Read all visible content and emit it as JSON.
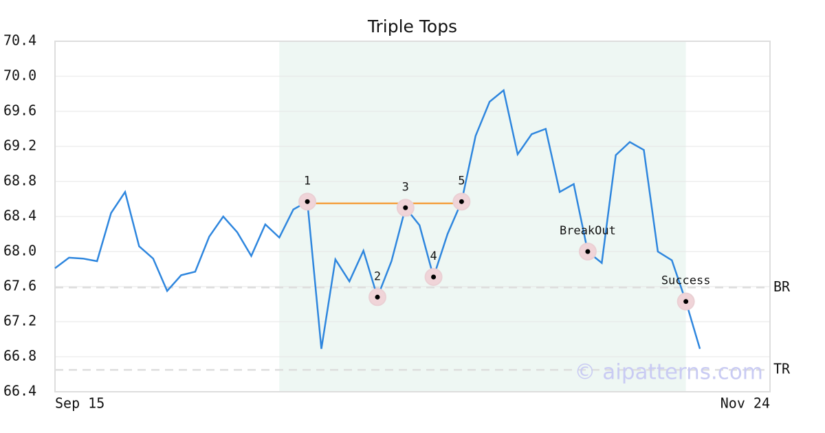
{
  "chart_data": {
    "type": "line",
    "title": "Triple Tops",
    "x": [
      0,
      1,
      2,
      3,
      4,
      5,
      6,
      7,
      8,
      9,
      10,
      11,
      12,
      13,
      14,
      15,
      16,
      17,
      18,
      19,
      20,
      21,
      22,
      23,
      24,
      25,
      26,
      27,
      28,
      29,
      30,
      31,
      32,
      33,
      34,
      35,
      36,
      37,
      38,
      39,
      40,
      41,
      42,
      43,
      44,
      45,
      46
    ],
    "series": [
      {
        "color": "#2e86de",
        "values": [
          67.81,
          67.93,
          67.92,
          67.89,
          68.44,
          68.68,
          68.06,
          67.92,
          67.55,
          67.73,
          67.77,
          68.17,
          68.4,
          68.22,
          67.95,
          68.31,
          68.16,
          68.48,
          68.57,
          66.89,
          67.91,
          67.66,
          68.01,
          67.48,
          67.89,
          68.5,
          68.3,
          67.71,
          68.2,
          68.57,
          69.32,
          69.71,
          69.84,
          69.11,
          69.34,
          69.4,
          68.68,
          68.77,
          68.0,
          67.87,
          69.1,
          69.25,
          69.16,
          68.0,
          67.9,
          67.43,
          66.89
        ]
      }
    ],
    "xlim": [
      0,
      51
    ],
    "xticks": [
      {
        "value": 0,
        "label": "Sep 15"
      },
      {
        "value": 51,
        "label": "Nov 24"
      }
    ],
    "ylim": [
      66.4,
      70.4
    ],
    "yticks": [
      66.4,
      66.8,
      67.2,
      67.6,
      {
        "value": 68,
        "label": "68.0"
      },
      68.4,
      68.8,
      69.2,
      69.6,
      {
        "value": 70,
        "label": "70.0"
      },
      70.4
    ],
    "grid": true,
    "shade": {
      "x": [
        16,
        45
      ],
      "color": "#eef7f3"
    },
    "resistance": {
      "x": [
        18,
        29
      ],
      "value": 68.55,
      "color": "#f4a040"
    },
    "levels": [
      {
        "label": "BR",
        "value": 67.59
      },
      {
        "label": "TR",
        "value": 66.65
      }
    ],
    "annotations": [
      {
        "label": "1",
        "x": 18
      },
      {
        "label": "2",
        "x": 23
      },
      {
        "label": "3",
        "x": 25
      },
      {
        "label": "4",
        "x": 27
      },
      {
        "label": "5",
        "x": 29
      },
      {
        "label": "BreakOut",
        "x": 38
      },
      {
        "label": "Success",
        "x": 45
      }
    ],
    "watermark": "© aipatterns.com"
  }
}
